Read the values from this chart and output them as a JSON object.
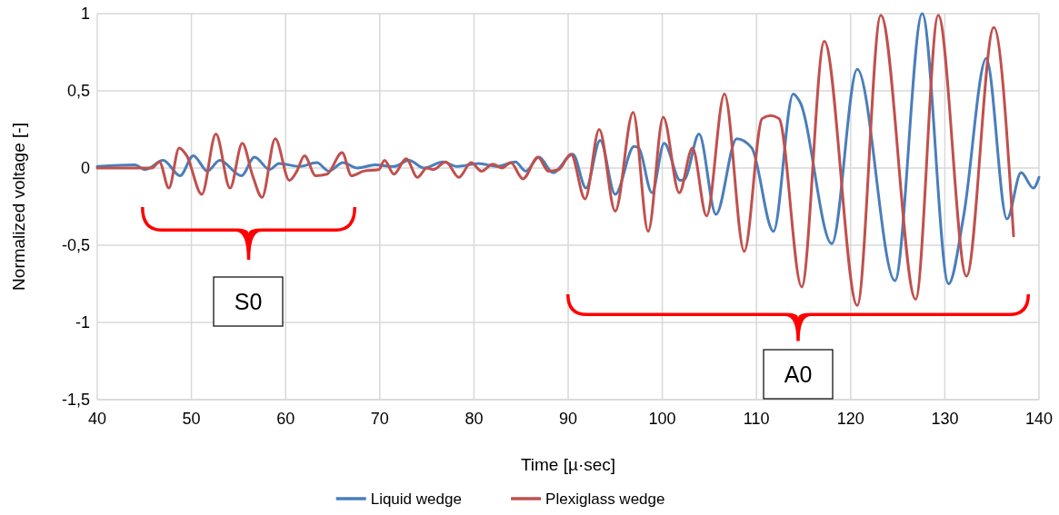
{
  "chart_data": {
    "type": "line",
    "xlabel": "Time [µ·sec]",
    "ylabel": "Normalized voltage [-]",
    "xlim": [
      40,
      140
    ],
    "xticks": [
      40,
      50,
      60,
      70,
      80,
      90,
      100,
      110,
      120,
      130,
      140
    ],
    "ylim": [
      -1.5,
      1
    ],
    "yticks": [
      {
        "value": -1.5,
        "label": "-1,5"
      },
      -1,
      {
        "value": -0.5,
        "label": "-0,5"
      },
      0,
      {
        "value": 0.5,
        "label": "0,5"
      },
      1
    ],
    "grid": true,
    "legend": "bottom",
    "marker": "none",
    "line_style": "solid",
    "annotations": [
      "S0",
      "A0"
    ],
    "series": [
      {
        "name": "Liquid wedge",
        "color": "#4a7ebb",
        "x": [
          40,
          44,
          45.1,
          47.0,
          48.8,
          50.2,
          51.7,
          53.0,
          55.3,
          56.7,
          58.3,
          59.3,
          61.5,
          63.3,
          64.6,
          66.1,
          67.6,
          69.5,
          71.5,
          73.1,
          74.7,
          76.7,
          78.2,
          80.5,
          82.5,
          84.4,
          85.5,
          86.9,
          88.4,
          90.5,
          91.9,
          93.4,
          95.0,
          97.0,
          97.5,
          98.9,
          100.2,
          101.9,
          102.4,
          103.9,
          105.7,
          107.9,
          109.5,
          111.8,
          113.9,
          114.6,
          118.0,
          120.7,
          124.7,
          127.6,
          130.4,
          132.0,
          134.4,
          136.6,
          138.1,
          139.4,
          140
        ],
        "values": [
          0.01,
          0.02,
          -0.01,
          0.05,
          -0.05,
          0.08,
          -0.02,
          0.05,
          -0.05,
          0.07,
          -0.01,
          0.03,
          0.01,
          0.035,
          -0.02,
          0.035,
          0.0,
          0.02,
          0.01,
          0.05,
          0.0,
          0.04,
          0.01,
          0.03,
          0.01,
          0.04,
          -0.02,
          0.07,
          -0.03,
          0.09,
          -0.13,
          0.18,
          -0.17,
          0.14,
          0.13,
          -0.16,
          0.16,
          -0.08,
          -0.07,
          0.22,
          -0.3,
          0.19,
          0.13,
          -0.41,
          0.48,
          0.43,
          -0.49,
          0.64,
          -0.73,
          1.0,
          -0.75,
          -0.31,
          0.71,
          -0.33,
          -0.03,
          -0.13,
          -0.06
        ]
      },
      {
        "name": "Plexiglass wedge",
        "color": "#c0504d",
        "x": [
          40,
          45.8,
          46.6,
          47.6,
          48.7,
          49.5,
          51.1,
          52.6,
          54.1,
          55.4,
          56.5,
          57.5,
          58.9,
          60.4,
          61.2,
          62.0,
          63.2,
          64.4,
          66.0,
          67.0,
          68.3,
          69.9,
          70.5,
          71.5,
          72.8,
          74.0,
          75.0,
          75.7,
          77.0,
          78.4,
          79.7,
          80.8,
          82.0,
          83.0,
          83.9,
          85.2,
          86.8,
          87.9,
          89.0,
          90.3,
          91.8,
          93.3,
          95.0,
          96.9,
          98.5,
          100.1,
          101.8,
          103.2,
          104.7,
          106.6,
          108.7,
          110.6,
          111.5,
          112.4,
          114.8,
          117.2,
          120.7,
          123.2,
          126.9,
          129.3,
          132.3,
          135.2,
          137.3
        ],
        "values": [
          0.0,
          0.0,
          0.04,
          -0.13,
          0.13,
          0.08,
          -0.17,
          0.22,
          -0.13,
          0.16,
          -0.05,
          -0.19,
          0.19,
          -0.08,
          -0.02,
          0.08,
          -0.05,
          -0.04,
          0.1,
          -0.05,
          -0.02,
          -0.01,
          0.05,
          -0.04,
          0.06,
          -0.06,
          0.0,
          -0.01,
          0.04,
          -0.06,
          0.035,
          -0.02,
          0.025,
          0.0,
          0.035,
          -0.07,
          0.07,
          -0.02,
          -0.01,
          0.09,
          -0.2,
          0.25,
          -0.28,
          0.36,
          -0.41,
          0.33,
          -0.16,
          0.13,
          -0.31,
          0.48,
          -0.54,
          0.32,
          0.34,
          0.32,
          -0.77,
          0.82,
          -0.89,
          0.99,
          -0.85,
          0.99,
          -0.7,
          0.91,
          -0.44
        ]
      }
    ]
  }
}
